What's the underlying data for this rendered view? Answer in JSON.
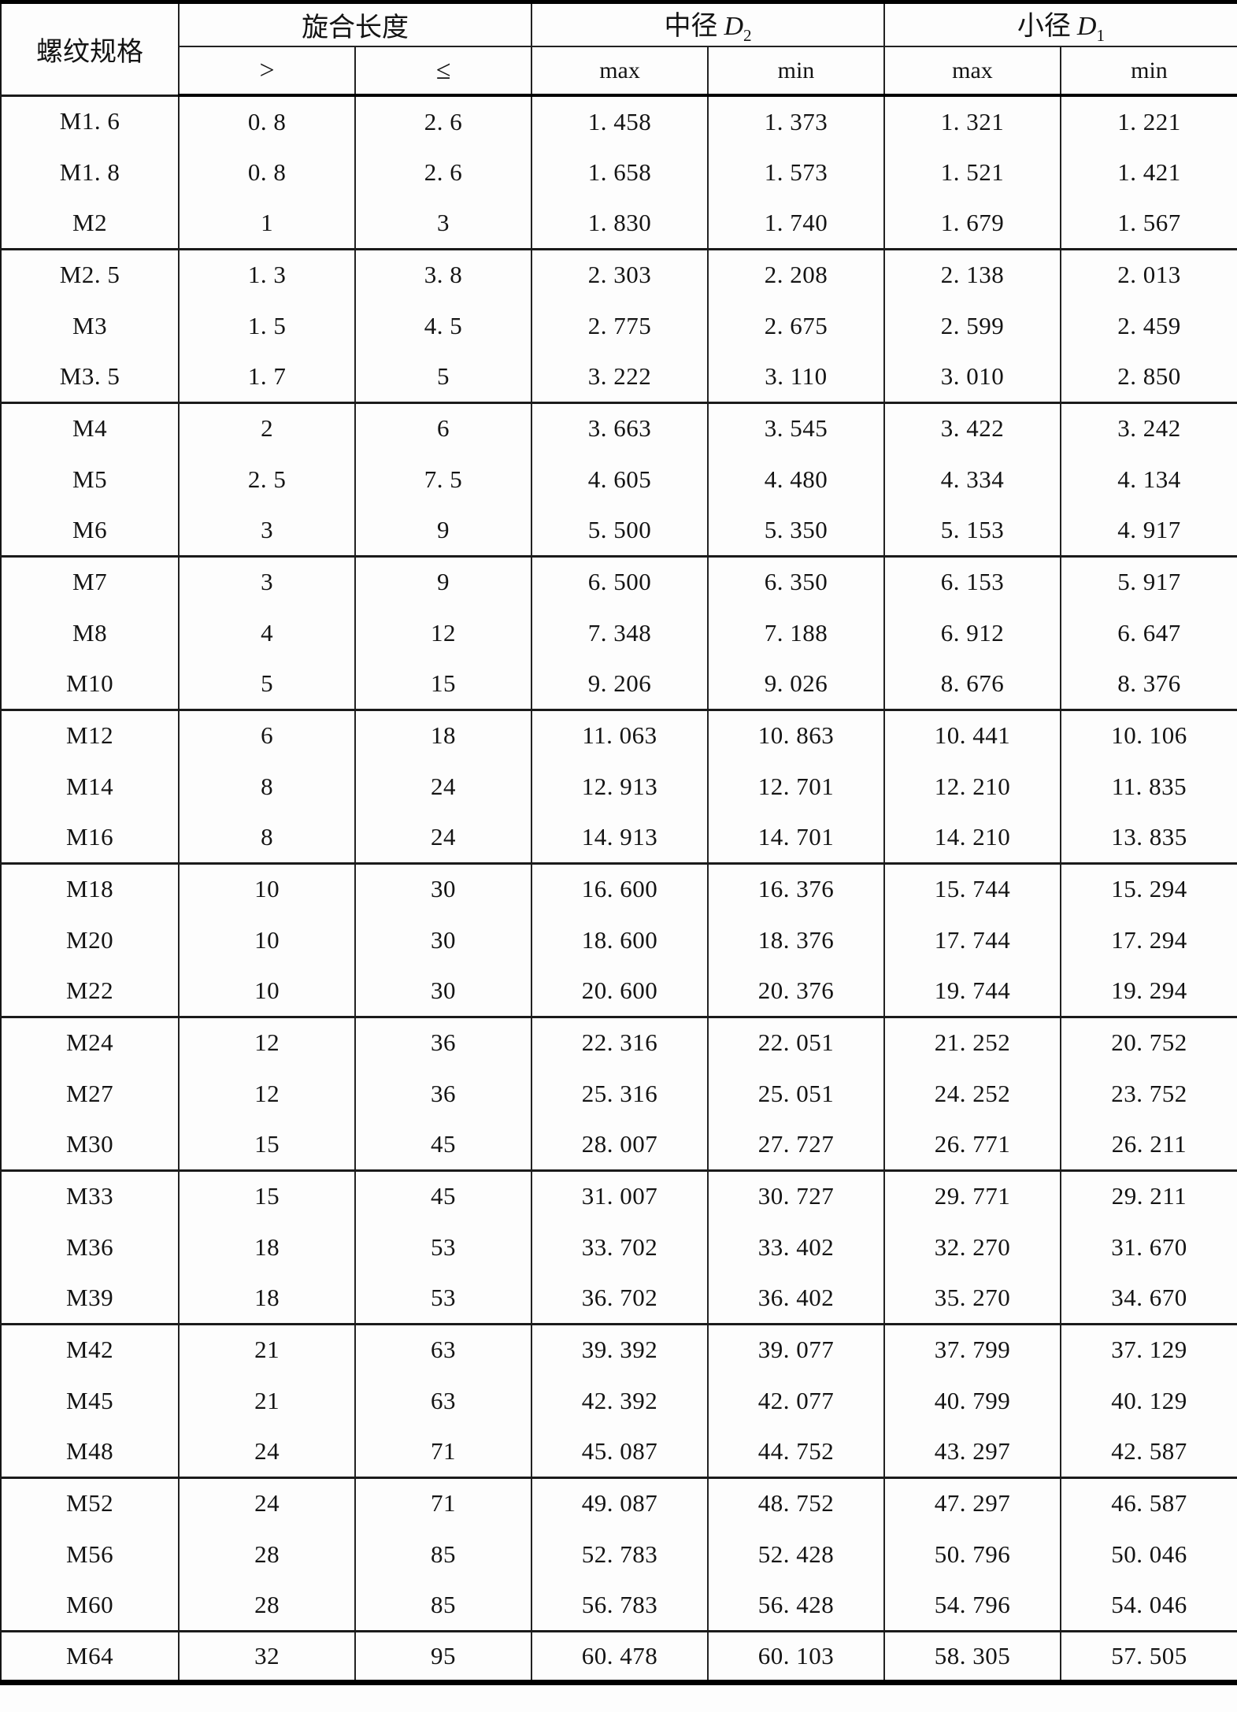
{
  "table": {
    "spec_header": "螺纹规格",
    "engagement_header": "旋合长度",
    "d2_header": {
      "prefix": "中径",
      "symbol": "D",
      "sub": "2"
    },
    "d1_header": {
      "prefix": "小径",
      "symbol": "D",
      "sub": "1"
    },
    "sub_headers": [
      ">",
      "≤",
      "max",
      "min",
      "max",
      "min"
    ],
    "columns": [
      "spec",
      "engagement_gt",
      "engagement_le",
      "d2_max",
      "d2_min",
      "d1_max",
      "d1_min"
    ],
    "groups": [
      [
        [
          "M1. 6",
          "0. 8",
          "2. 6",
          "1. 458",
          "1. 373",
          "1. 321",
          "1. 221"
        ],
        [
          "M1. 8",
          "0. 8",
          "2. 6",
          "1. 658",
          "1. 573",
          "1. 521",
          "1. 421"
        ],
        [
          "M2",
          "1",
          "3",
          "1. 830",
          "1. 740",
          "1. 679",
          "1. 567"
        ]
      ],
      [
        [
          "M2. 5",
          "1. 3",
          "3. 8",
          "2. 303",
          "2. 208",
          "2. 138",
          "2. 013"
        ],
        [
          "M3",
          "1. 5",
          "4. 5",
          "2. 775",
          "2. 675",
          "2. 599",
          "2. 459"
        ],
        [
          "M3. 5",
          "1. 7",
          "5",
          "3. 222",
          "3. 110",
          "3. 010",
          "2. 850"
        ]
      ],
      [
        [
          "M4",
          "2",
          "6",
          "3. 663",
          "3. 545",
          "3. 422",
          "3. 242"
        ],
        [
          "M5",
          "2. 5",
          "7. 5",
          "4. 605",
          "4. 480",
          "4. 334",
          "4. 134"
        ],
        [
          "M6",
          "3",
          "9",
          "5. 500",
          "5. 350",
          "5. 153",
          "4. 917"
        ]
      ],
      [
        [
          "M7",
          "3",
          "9",
          "6. 500",
          "6. 350",
          "6. 153",
          "5. 917"
        ],
        [
          "M8",
          "4",
          "12",
          "7. 348",
          "7. 188",
          "6. 912",
          "6. 647"
        ],
        [
          "M10",
          "5",
          "15",
          "9. 206",
          "9. 026",
          "8. 676",
          "8. 376"
        ]
      ],
      [
        [
          "M12",
          "6",
          "18",
          "11. 063",
          "10. 863",
          "10. 441",
          "10. 106"
        ],
        [
          "M14",
          "8",
          "24",
          "12. 913",
          "12. 701",
          "12. 210",
          "11. 835"
        ],
        [
          "M16",
          "8",
          "24",
          "14. 913",
          "14. 701",
          "14. 210",
          "13. 835"
        ]
      ],
      [
        [
          "M18",
          "10",
          "30",
          "16. 600",
          "16. 376",
          "15. 744",
          "15. 294"
        ],
        [
          "M20",
          "10",
          "30",
          "18. 600",
          "18. 376",
          "17. 744",
          "17. 294"
        ],
        [
          "M22",
          "10",
          "30",
          "20. 600",
          "20. 376",
          "19. 744",
          "19. 294"
        ]
      ],
      [
        [
          "M24",
          "12",
          "36",
          "22. 316",
          "22. 051",
          "21. 252",
          "20. 752"
        ],
        [
          "M27",
          "12",
          "36",
          "25. 316",
          "25. 051",
          "24. 252",
          "23. 752"
        ],
        [
          "M30",
          "15",
          "45",
          "28. 007",
          "27. 727",
          "26. 771",
          "26. 211"
        ]
      ],
      [
        [
          "M33",
          "15",
          "45",
          "31. 007",
          "30. 727",
          "29. 771",
          "29. 211"
        ],
        [
          "M36",
          "18",
          "53",
          "33. 702",
          "33. 402",
          "32. 270",
          "31. 670"
        ],
        [
          "M39",
          "18",
          "53",
          "36. 702",
          "36. 402",
          "35. 270",
          "34. 670"
        ]
      ],
      [
        [
          "M42",
          "21",
          "63",
          "39. 392",
          "39. 077",
          "37. 799",
          "37. 129"
        ],
        [
          "M45",
          "21",
          "63",
          "42. 392",
          "42. 077",
          "40. 799",
          "40. 129"
        ],
        [
          "M48",
          "24",
          "71",
          "45. 087",
          "44. 752",
          "43. 297",
          "42. 587"
        ]
      ],
      [
        [
          "M52",
          "24",
          "71",
          "49. 087",
          "48. 752",
          "47. 297",
          "46. 587"
        ],
        [
          "M56",
          "28",
          "85",
          "52. 783",
          "52. 428",
          "50. 796",
          "50. 046"
        ],
        [
          "M60",
          "28",
          "85",
          "56. 783",
          "56. 428",
          "54. 796",
          "54. 046"
        ]
      ],
      [
        [
          "M64",
          "32",
          "95",
          "60. 478",
          "60. 103",
          "58. 305",
          "57. 505"
        ]
      ]
    ]
  }
}
